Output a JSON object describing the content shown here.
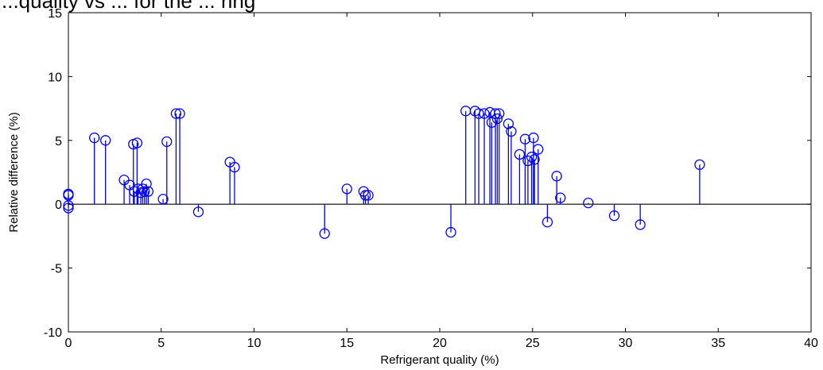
{
  "chart_data": {
    "type": "stem",
    "title": "...quality vs ... for the ... ring",
    "xlabel": "Refrigerant quality (%)",
    "ylabel": "Relative difference (%)",
    "xlim": [
      0,
      40
    ],
    "ylim": [
      -10,
      15
    ],
    "xticks": [
      "0",
      "5",
      "10",
      "15",
      "20",
      "25",
      "30",
      "35",
      "40"
    ],
    "yticks": [
      "-10",
      "-5",
      "0",
      "5",
      "10",
      "15"
    ],
    "grid": false,
    "color": "#0000ff",
    "marker": "circle",
    "points": [
      {
        "x": 0.0,
        "y": 0.7
      },
      {
        "x": 0.0,
        "y": 0.8
      },
      {
        "x": 0.0,
        "y": -0.1
      },
      {
        "x": 0.0,
        "y": -0.3
      },
      {
        "x": 1.4,
        "y": 5.2
      },
      {
        "x": 2.0,
        "y": 5.0
      },
      {
        "x": 3.0,
        "y": 1.9
      },
      {
        "x": 3.3,
        "y": 1.5
      },
      {
        "x": 3.5,
        "y": 4.7
      },
      {
        "x": 3.55,
        "y": 1.0
      },
      {
        "x": 3.7,
        "y": 4.8
      },
      {
        "x": 3.75,
        "y": 1.2
      },
      {
        "x": 3.9,
        "y": 0.9
      },
      {
        "x": 4.0,
        "y": 1.2
      },
      {
        "x": 4.1,
        "y": 1.0
      },
      {
        "x": 4.2,
        "y": 1.6
      },
      {
        "x": 4.3,
        "y": 1.0
      },
      {
        "x": 5.1,
        "y": 0.4
      },
      {
        "x": 5.3,
        "y": 4.9
      },
      {
        "x": 5.8,
        "y": 7.1
      },
      {
        "x": 6.0,
        "y": 7.1
      },
      {
        "x": 7.0,
        "y": -0.6
      },
      {
        "x": 8.7,
        "y": 3.3
      },
      {
        "x": 8.95,
        "y": 2.9
      },
      {
        "x": 13.8,
        "y": -2.3
      },
      {
        "x": 15.0,
        "y": 1.2
      },
      {
        "x": 15.9,
        "y": 1.0
      },
      {
        "x": 16.0,
        "y": 0.7
      },
      {
        "x": 16.15,
        "y": 0.7
      },
      {
        "x": 20.6,
        "y": -2.2
      },
      {
        "x": 21.4,
        "y": 7.3
      },
      {
        "x": 21.9,
        "y": 7.3
      },
      {
        "x": 22.1,
        "y": 7.1
      },
      {
        "x": 22.4,
        "y": 7.1
      },
      {
        "x": 22.7,
        "y": 7.2
      },
      {
        "x": 22.8,
        "y": 6.4
      },
      {
        "x": 23.0,
        "y": 7.1
      },
      {
        "x": 23.2,
        "y": 7.1
      },
      {
        "x": 23.1,
        "y": 6.7
      },
      {
        "x": 23.7,
        "y": 6.3
      },
      {
        "x": 23.85,
        "y": 5.7
      },
      {
        "x": 24.3,
        "y": 3.9
      },
      {
        "x": 24.6,
        "y": 5.1
      },
      {
        "x": 24.75,
        "y": 3.4
      },
      {
        "x": 24.95,
        "y": 3.7
      },
      {
        "x": 25.05,
        "y": 5.2
      },
      {
        "x": 25.1,
        "y": 3.5
      },
      {
        "x": 25.3,
        "y": 4.3
      },
      {
        "x": 25.8,
        "y": -1.4
      },
      {
        "x": 26.3,
        "y": 2.2
      },
      {
        "x": 26.5,
        "y": 0.5
      },
      {
        "x": 28.0,
        "y": 0.1
      },
      {
        "x": 29.4,
        "y": -0.9
      },
      {
        "x": 30.8,
        "y": -1.6
      },
      {
        "x": 34.0,
        "y": 3.1
      }
    ]
  }
}
